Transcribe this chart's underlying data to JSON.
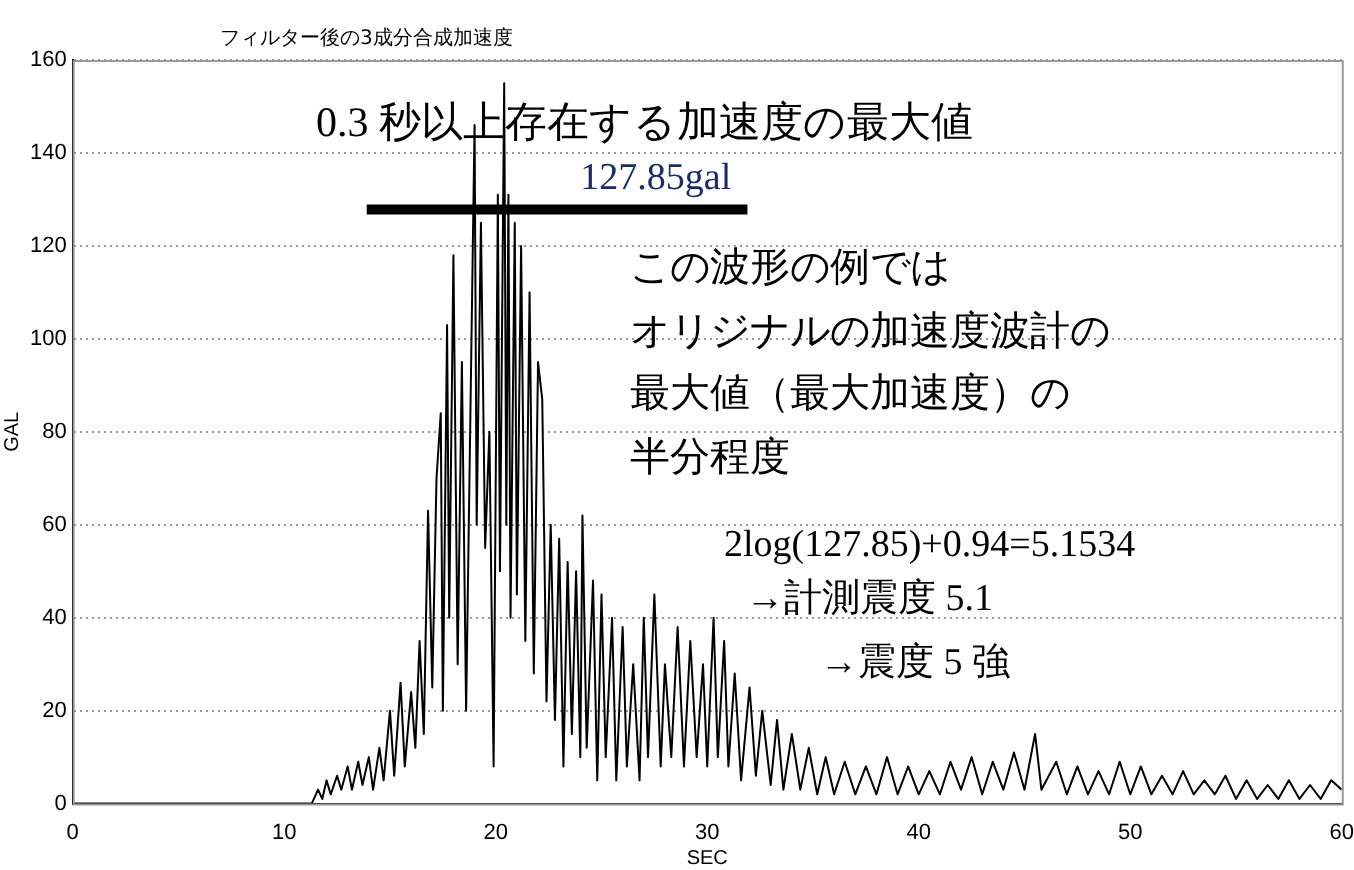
{
  "chart_data": {
    "type": "line",
    "title": "フィルター後の3成分合成加速度",
    "xlabel": "SEC",
    "ylabel": "GAL",
    "xlim": [
      0,
      60
    ],
    "xticks": [
      0,
      10,
      20,
      30,
      40,
      50,
      60
    ],
    "ylim": [
      0,
      160
    ],
    "yticks": [
      0,
      20,
      40,
      60,
      80,
      100,
      120,
      140,
      160
    ],
    "grid": "y",
    "legend": false,
    "marker": "none",
    "line_style": "solid",
    "series": [
      {
        "color": "#000000",
        "x": [
          0,
          11.3,
          11.6,
          11.8,
          12.0,
          12.2,
          12.5,
          12.7,
          13.0,
          13.2,
          13.5,
          13.7,
          14.0,
          14.2,
          14.5,
          14.7,
          15.0,
          15.2,
          15.5,
          15.7,
          16.0,
          16.2,
          16.4,
          16.6,
          16.8,
          17.0,
          17.2,
          17.4,
          17.5,
          17.7,
          17.8,
          18.0,
          18.2,
          18.4,
          18.6,
          19.0,
          19.1,
          19.3,
          19.5,
          19.7,
          19.9,
          20.1,
          20.2,
          20.4,
          20.5,
          20.6,
          20.7,
          20.9,
          21.0,
          21.2,
          21.4,
          21.6,
          21.8,
          22.0,
          22.2,
          22.4,
          22.6,
          22.8,
          23.0,
          23.2,
          23.4,
          23.6,
          23.8,
          24.0,
          24.1,
          24.3,
          24.6,
          24.8,
          25.0,
          25.2,
          25.5,
          25.7,
          26.0,
          26.2,
          26.5,
          26.8,
          27.0,
          27.2,
          27.5,
          27.8,
          28.0,
          28.3,
          28.6,
          28.9,
          29.2,
          29.5,
          29.8,
          30.0,
          30.3,
          30.5,
          30.8,
          31.0,
          31.3,
          31.6,
          32.0,
          32.3,
          32.6,
          33.0,
          33.3,
          33.6,
          34.0,
          34.4,
          34.8,
          35.2,
          35.6,
          36.0,
          36.5,
          37.0,
          37.5,
          38.0,
          38.5,
          39.0,
          39.5,
          40.0,
          40.5,
          41.0,
          41.5,
          42.0,
          42.5,
          43.0,
          43.5,
          44.0,
          44.5,
          45.0,
          45.5,
          45.8,
          46.5,
          47.0,
          47.5,
          48.0,
          48.5,
          49.0,
          49.5,
          50.0,
          50.5,
          51.0,
          51.5,
          52.0,
          52.5,
          53.0,
          53.5,
          54.0,
          54.5,
          55.0,
          55.5,
          56.0,
          56.5,
          57.0,
          57.5,
          58.0,
          58.5,
          59.0,
          59.5,
          60.0
        ],
        "values": [
          0,
          0,
          3,
          1,
          5,
          2,
          6,
          3,
          8,
          3,
          9,
          4,
          10,
          3,
          12,
          5,
          20,
          6,
          26,
          8,
          24,
          12,
          35,
          15,
          63,
          25,
          70,
          84,
          20,
          103,
          40,
          118,
          30,
          95,
          20,
          146,
          60,
          125,
          55,
          80,
          8,
          131,
          50,
          155,
          60,
          131,
          40,
          125,
          45,
          120,
          35,
          110,
          28,
          95,
          87,
          22,
          60,
          18,
          57,
          8,
          52,
          15,
          50,
          10,
          62,
          12,
          48,
          5,
          45,
          10,
          40,
          5,
          38,
          8,
          30,
          5,
          40,
          10,
          45,
          8,
          30,
          10,
          38,
          8,
          35,
          10,
          30,
          8,
          40,
          10,
          35,
          8,
          28,
          5,
          25,
          6,
          20,
          4,
          18,
          3,
          15,
          3,
          12,
          2,
          10,
          2,
          9,
          2,
          8,
          2,
          10,
          2,
          8,
          2,
          7,
          2,
          9,
          3,
          10,
          2,
          9,
          3,
          11,
          3,
          15,
          3,
          9,
          2,
          8,
          2,
          7,
          2,
          9,
          2,
          8,
          2,
          6,
          2,
          7,
          2,
          5,
          2,
          6,
          1,
          5,
          1,
          4,
          1,
          5,
          1,
          4,
          1,
          5,
          3
        ]
      },
      {
        "type": "line",
        "color": "#000000",
        "x": [
          13.9,
          31.9
        ],
        "values": [
          127.85,
          127.85
        ]
      }
    ],
    "annotations": [
      "0.3 秒以上存在する加速度の最大値",
      {
        "text": "127.85gal",
        "x": 24,
        "y": 127.85
      },
      "この波形の例では",
      "オリジナルの加速度波計の",
      "最大値（最大加速度）の",
      "半分程度",
      "2log(127.85)+0.94=5.1534",
      "→計測震度 5.1",
      "→震度 5 強"
    ]
  }
}
